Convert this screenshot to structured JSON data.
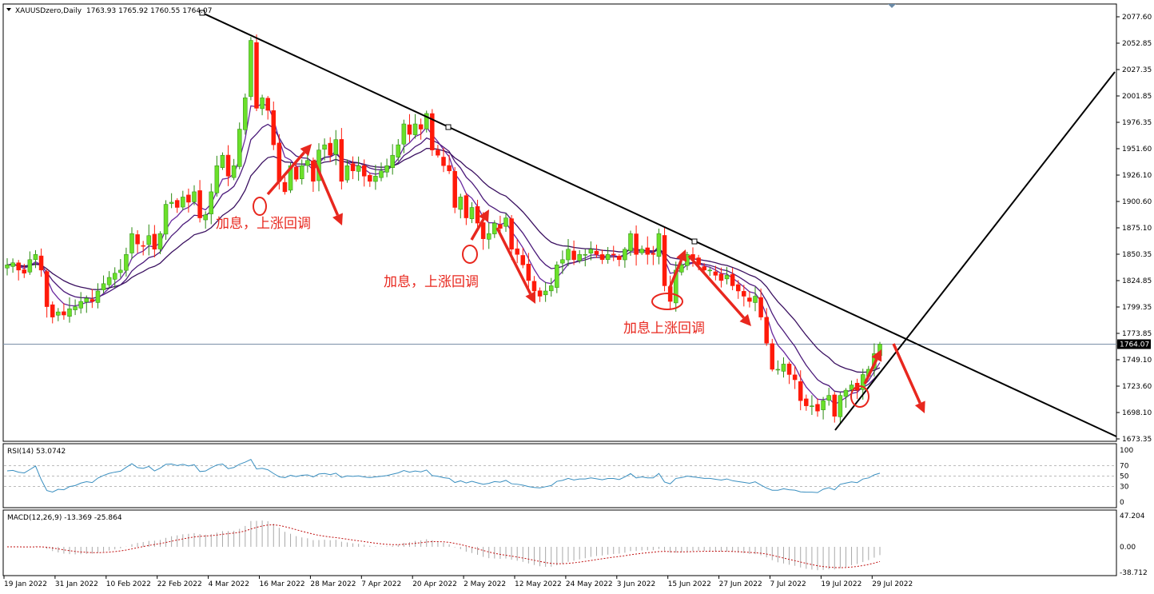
{
  "header": {
    "symbol": "XAUUSDzero,Daily",
    "ohlc_text": "1763.93 1765.92 1760.55 1764.07"
  },
  "price_axis": [
    "2077.60",
    "2052.85",
    "2027.35",
    "2001.85",
    "1976.35",
    "1951.60",
    "1926.10",
    "1900.60",
    "1875.10",
    "1850.35",
    "1824.85",
    "1799.35",
    "1773.85",
    "1749.10",
    "1723.60",
    "1698.10",
    "1673.35"
  ],
  "current_price": "1764.07",
  "rsi": {
    "label": "RSI(14) 53.0742",
    "levels": [
      "100",
      "70",
      "50",
      "30",
      "0"
    ]
  },
  "macd": {
    "label": "MACD(12,26,9) -13.369 -25.864",
    "levels": [
      "47.204",
      "0.00",
      "-38.712"
    ]
  },
  "date_axis": [
    "19 Jan 2022",
    "31 Jan 2022",
    "10 Feb 2022",
    "22 Feb 2022",
    "4 Mar 2022",
    "16 Mar 2022",
    "28 Mar 2022",
    "7 Apr 2022",
    "20 Apr 2022",
    "2 May 2022",
    "12 May 2022",
    "24 May 2022",
    "3 Jun 2022",
    "15 Jun 2022",
    "27 Jun 2022",
    "7 Jul 2022",
    "19 Jul 2022",
    "29 Jul 2022"
  ],
  "annotations": [
    "加息，上涨回调",
    "加息，上涨回调",
    "加息上涨回调"
  ],
  "colors": {
    "bull": "#6be02a",
    "bear": "#ff1a0a",
    "annotation": "#e8271e",
    "rsi": "#3a8fc0",
    "ma": "#4b1a7a"
  },
  "chart_data": {
    "type": "candlestick",
    "title": "XAUUSDzero,Daily",
    "ylim": [
      1673.35,
      2077.6
    ],
    "x_range": [
      "19 Jan 2022",
      "29 Jul 2022"
    ],
    "close": [
      1840,
      1842,
      1835,
      1832,
      1845,
      1850,
      1835,
      1800,
      1790,
      1795,
      1792,
      1798,
      1800,
      1805,
      1808,
      1805,
      1815,
      1822,
      1828,
      1832,
      1835,
      1850,
      1870,
      1860,
      1858,
      1868,
      1855,
      1870,
      1898,
      1900,
      1895,
      1905,
      1900,
      1910,
      1885,
      1888,
      1910,
      1935,
      1945,
      1925,
      1935,
      1970,
      2000,
      2055,
      1990,
      2000,
      1988,
      1955,
      1920,
      1910,
      1935,
      1922,
      1935,
      1940,
      1920,
      1950,
      1955,
      1945,
      1960,
      1920,
      1935,
      1930,
      1935,
      1925,
      1920,
      1925,
      1930,
      1935,
      1945,
      1955,
      1975,
      1965,
      1975,
      1970,
      1985,
      1950,
      1945,
      1935,
      1930,
      1895,
      1905,
      1885,
      1895,
      1880,
      1865,
      1870,
      1880,
      1875,
      1885,
      1855,
      1850,
      1840,
      1825,
      1815,
      1810,
      1815,
      1820,
      1840,
      1845,
      1855,
      1845,
      1850,
      1850,
      1855,
      1850,
      1845,
      1850,
      1850,
      1845,
      1855,
      1870,
      1850,
      1855,
      1850,
      1850,
      1870,
      1820,
      1805,
      1835,
      1840,
      1850,
      1845,
      1840,
      1835,
      1835,
      1830,
      1825,
      1830,
      1820,
      1815,
      1810,
      1805,
      1810,
      1790,
      1765,
      1740,
      1740,
      1745,
      1735,
      1730,
      1710,
      1705,
      1705,
      1700,
      1710,
      1715,
      1695,
      1715,
      1720,
      1725,
      1720,
      1735,
      1740,
      1755,
      1764.07
    ]
  }
}
